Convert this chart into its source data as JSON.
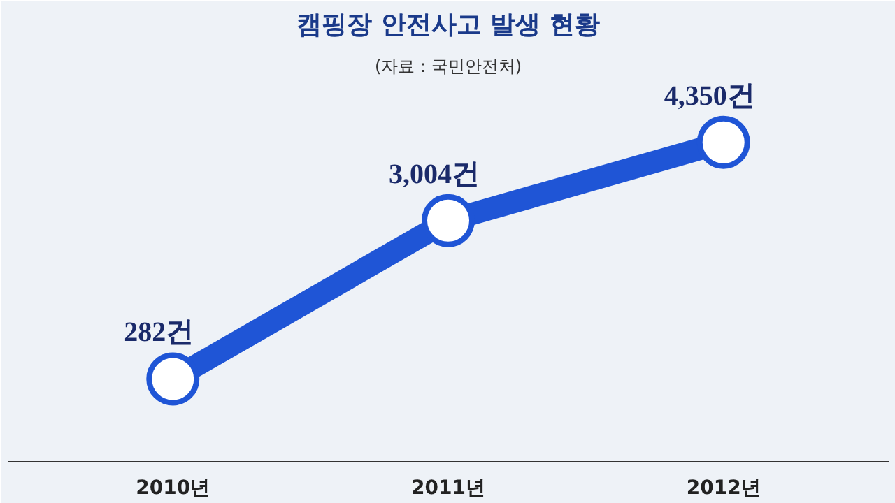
{
  "chart_data": {
    "type": "line",
    "title": "캠핑장 안전사고 발생 현황",
    "subtitle": "(자료 : 국민안전처)",
    "categories": [
      "2010년",
      "2011년",
      "2012년"
    ],
    "series": [
      {
        "color": "#1f55d6",
        "values": [
          282,
          3004,
          4350
        ],
        "value_labels": [
          "282건",
          "3,004건",
          "4,350건"
        ]
      }
    ],
    "marker": "circle",
    "line_style": "solid",
    "grid": false
  }
}
